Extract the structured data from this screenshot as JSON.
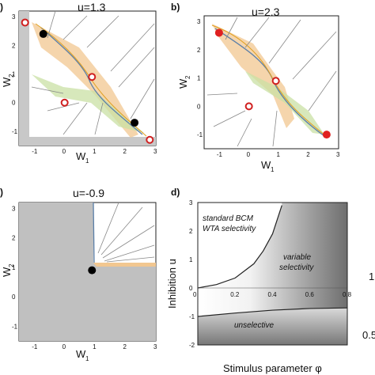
{
  "chart_data": [
    {
      "type": "scatter",
      "panel_label": ")",
      "title": "u=1.3",
      "xlabel": "W",
      "xlabel_sub": "1",
      "ylabel": "W",
      "ylabel_sub": "2",
      "xlim": [
        -1.5,
        3
      ],
      "ylim": [
        -1.5,
        3.2
      ],
      "xticks": [
        -1,
        0,
        1,
        2,
        3
      ],
      "yticks": [
        -1,
        0,
        1,
        2,
        3
      ],
      "stable_points": [
        [
          -0.7,
          2.4
        ],
        [
          2.3,
          -0.7
        ]
      ],
      "unstable_points": [
        [
          -1.3,
          2.8
        ],
        [
          0.0,
          0.0
        ],
        [
          0.9,
          0.9
        ],
        [
          2.8,
          -1.3
        ]
      ]
    },
    {
      "type": "scatter",
      "panel_label": "b)",
      "title": "u=2.3",
      "xlabel": "W",
      "xlabel_sub": "1",
      "ylabel": "W",
      "ylabel_sub": "2",
      "xlim": [
        -1.5,
        3
      ],
      "ylim": [
        -1.5,
        3.2
      ],
      "xticks": [
        -1,
        0,
        1,
        2,
        3
      ],
      "yticks": [
        -1,
        0,
        1,
        2,
        3
      ],
      "stable_points": [
        [
          -1.0,
          2.6
        ],
        [
          2.6,
          -1.0
        ]
      ],
      "unstable_points": [
        [
          0.0,
          0.0
        ],
        [
          0.9,
          0.9
        ]
      ]
    },
    {
      "type": "scatter",
      "panel_label": ")",
      "title": "u=-0.9",
      "xlabel": "W",
      "xlabel_sub": "1",
      "ylabel": "W",
      "ylabel_sub": "2",
      "xlim": [
        -1.5,
        3
      ],
      "ylim": [
        -1.5,
        3.2
      ],
      "xticks": [
        -1,
        0,
        1,
        2,
        3
      ],
      "yticks": [
        -1,
        0,
        1,
        2,
        3
      ],
      "stable_points": [
        [
          0.9,
          0.9
        ]
      ],
      "unstable_points": []
    },
    {
      "type": "heatmap",
      "panel_label": "d)",
      "xlabel": "Stimulus parameter φ",
      "ylabel": "Inhibition u",
      "xlim": [
        0,
        0.8
      ],
      "ylim": [
        -2,
        3
      ],
      "xticks": [
        0,
        0.2,
        0.4,
        0.6,
        0.8
      ],
      "yticks": [
        -2,
        -1,
        0,
        1,
        2,
        3
      ],
      "upper_boundary": {
        "x": [
          0,
          0.1,
          0.2,
          0.3,
          0.35,
          0.4,
          0.45
        ],
        "y": [
          0,
          0.12,
          0.35,
          0.85,
          1.3,
          1.9,
          2.9
        ]
      },
      "lower_boundary": {
        "x": [
          0,
          0.2,
          0.4,
          0.6,
          0.8
        ],
        "y": [
          -1.0,
          -0.88,
          -0.78,
          -0.72,
          -0.7
        ]
      },
      "annotations": [
        "standard BCM",
        "WTA selectivity",
        "variable",
        "selectivity",
        "unselective"
      ],
      "colorbar_labels": [
        "1",
        "0.5"
      ]
    }
  ]
}
